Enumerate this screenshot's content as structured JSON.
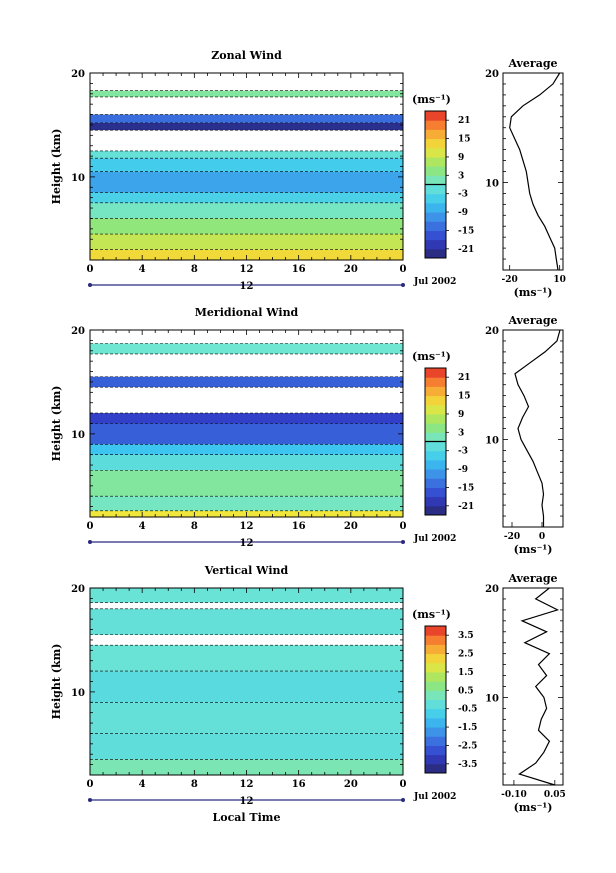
{
  "chart_data": [
    {
      "type": "heatmap",
      "title": "Zonal Wind",
      "ylabel": "Height (km)",
      "xlabel": "",
      "x_ticks": [
        "0",
        "4",
        "8",
        "12",
        "16",
        "20",
        "0"
      ],
      "y_ticks": [
        "20",
        "10"
      ],
      "ylim": [
        2,
        20
      ],
      "xlim": [
        0,
        24
      ],
      "time_bar_label": "12",
      "date_label": "Jul 2002",
      "colorbar": {
        "unit": "(ms⁻¹)",
        "ticks": [
          "21",
          "15",
          "9",
          "3",
          "-3",
          "-9",
          "-15",
          "-21"
        ],
        "range": [
          -24,
          24
        ]
      },
      "profile": {
        "title": "Average",
        "xlabel": "(ms⁻¹)",
        "x_ticks": [
          "-20",
          "10"
        ],
        "y_ticks": [
          "20",
          "10"
        ],
        "xlim": [
          -24,
          12
        ],
        "height_km": [
          2,
          3,
          4,
          5,
          6,
          7,
          8,
          9,
          10,
          11,
          12,
          13,
          14,
          15,
          16,
          17,
          18,
          19,
          20
        ],
        "value": [
          9,
          8,
          7,
          4,
          1,
          -3,
          -6,
          -8,
          -9,
          -10,
          -12,
          -14,
          -17,
          -20,
          -19,
          -12,
          -2,
          6,
          10
        ]
      },
      "layers": [
        {
          "from": 2,
          "to": 3,
          "value": 13
        },
        {
          "from": 3,
          "to": 4.5,
          "value": 9
        },
        {
          "from": 4.5,
          "to": 6,
          "value": 5
        },
        {
          "from": 6,
          "to": 7.5,
          "value": 1
        },
        {
          "from": 7.5,
          "to": 8.5,
          "value": -4
        },
        {
          "from": 8.5,
          "to": 10.5,
          "value": -9
        },
        {
          "from": 10.5,
          "to": 11.8,
          "value": -5
        },
        {
          "from": 11.8,
          "to": 12.5,
          "value": -1
        },
        {
          "from": 12.5,
          "to": 14.5,
          "value": "gap"
        },
        {
          "from": 14.5,
          "to": 15.2,
          "value": -22
        },
        {
          "from": 15.2,
          "to": 16,
          "value": -14
        },
        {
          "from": 16,
          "to": 17.7,
          "value": "gap"
        },
        {
          "from": 17.7,
          "to": 18.3,
          "value": 3
        },
        {
          "from": 18.3,
          "to": 20,
          "value": "gap"
        }
      ]
    },
    {
      "type": "heatmap",
      "title": "Meridional Wind",
      "ylabel": "Height (km)",
      "xlabel": "",
      "x_ticks": [
        "0",
        "4",
        "8",
        "12",
        "16",
        "20",
        "0"
      ],
      "y_ticks": [
        "20",
        "10"
      ],
      "ylim": [
        2,
        20
      ],
      "xlim": [
        0,
        24
      ],
      "time_bar_label": "12",
      "date_label": "Jul 2002",
      "colorbar": {
        "unit": "(ms⁻¹)",
        "ticks": [
          "21",
          "15",
          "9",
          "3",
          "-3",
          "-9",
          "-15",
          "-21"
        ],
        "range": [
          -24,
          24
        ]
      },
      "profile": {
        "title": "Average",
        "xlabel": "(ms⁻¹)",
        "x_ticks": [
          "-20",
          "0"
        ],
        "y_ticks": [
          "20",
          "10"
        ],
        "xlim": [
          -26,
          14
        ],
        "height_km": [
          2,
          3,
          4,
          5,
          6,
          7,
          8,
          9,
          10,
          11,
          12,
          13,
          14,
          15,
          16,
          17,
          18,
          19,
          20
        ],
        "value": [
          1,
          1,
          0,
          1,
          0,
          -3,
          -6,
          -10,
          -14,
          -16,
          -13,
          -9,
          -12,
          -16,
          -18,
          -8,
          2,
          10,
          12
        ]
      },
      "layers": [
        {
          "from": 2,
          "to": 2.6,
          "value": 12
        },
        {
          "from": 2.6,
          "to": 4,
          "value": 1
        },
        {
          "from": 4,
          "to": 6.5,
          "value": 3
        },
        {
          "from": 6.5,
          "to": 8,
          "value": -2
        },
        {
          "from": 8,
          "to": 9,
          "value": -6
        },
        {
          "from": 9,
          "to": 11,
          "value": -15
        },
        {
          "from": 11,
          "to": 12,
          "value": -18
        },
        {
          "from": 12,
          "to": 14.5,
          "value": "gap"
        },
        {
          "from": 14.5,
          "to": 15.5,
          "value": -15
        },
        {
          "from": 15.5,
          "to": 17.7,
          "value": "gap"
        },
        {
          "from": 17.7,
          "to": 18.7,
          "value": 0
        },
        {
          "from": 18.7,
          "to": 20,
          "value": "gap"
        }
      ]
    },
    {
      "type": "heatmap",
      "title": "Vertical Wind",
      "ylabel": "Height (km)",
      "xlabel": "Local Time",
      "x_ticks": [
        "0",
        "4",
        "8",
        "12",
        "16",
        "20",
        "0"
      ],
      "y_ticks": [
        "20",
        "10"
      ],
      "ylim": [
        2,
        20
      ],
      "xlim": [
        0,
        24
      ],
      "time_bar_label": "12",
      "date_label": "Jul 2002",
      "colorbar": {
        "unit": "(ms⁻¹)",
        "ticks": [
          "3.5",
          "2.5",
          "1.5",
          "0.5",
          "-0.5",
          "-1.5",
          "-2.5",
          "-3.5"
        ],
        "range": [
          -4,
          4
        ]
      },
      "profile": {
        "title": "Average",
        "xlabel": "(ms⁻¹)",
        "x_ticks": [
          "-0.10",
          "0.05"
        ],
        "y_ticks": [
          "20",
          "10"
        ],
        "xlim": [
          -0.14,
          0.08
        ],
        "height_km": [
          2,
          3,
          4,
          5,
          6,
          7,
          8,
          9,
          10,
          11,
          12,
          13,
          14,
          15,
          16,
          17,
          18,
          19,
          20
        ],
        "value": [
          0.05,
          -0.08,
          -0.02,
          0.01,
          0.03,
          -0.01,
          0.0,
          0.02,
          0.01,
          -0.02,
          0.02,
          -0.01,
          0.03,
          -0.06,
          0.02,
          -0.07,
          0.06,
          -0.02,
          0.03
        ]
      },
      "layers": [
        {
          "from": 2,
          "to": 3.5,
          "value": 0.3
        },
        {
          "from": 3.5,
          "to": 6,
          "value": -0.3
        },
        {
          "from": 6,
          "to": 9,
          "value": -0.2
        },
        {
          "from": 9,
          "to": 12,
          "value": -0.4
        },
        {
          "from": 12,
          "to": 14.5,
          "value": -0.1
        },
        {
          "from": 14.5,
          "to": 15.5,
          "value": "gap"
        },
        {
          "from": 15.5,
          "to": 18,
          "value": -0.2
        },
        {
          "from": 18,
          "to": 18.6,
          "value": "gap"
        },
        {
          "from": 18.6,
          "to": 20,
          "value": -0.1
        }
      ]
    }
  ]
}
